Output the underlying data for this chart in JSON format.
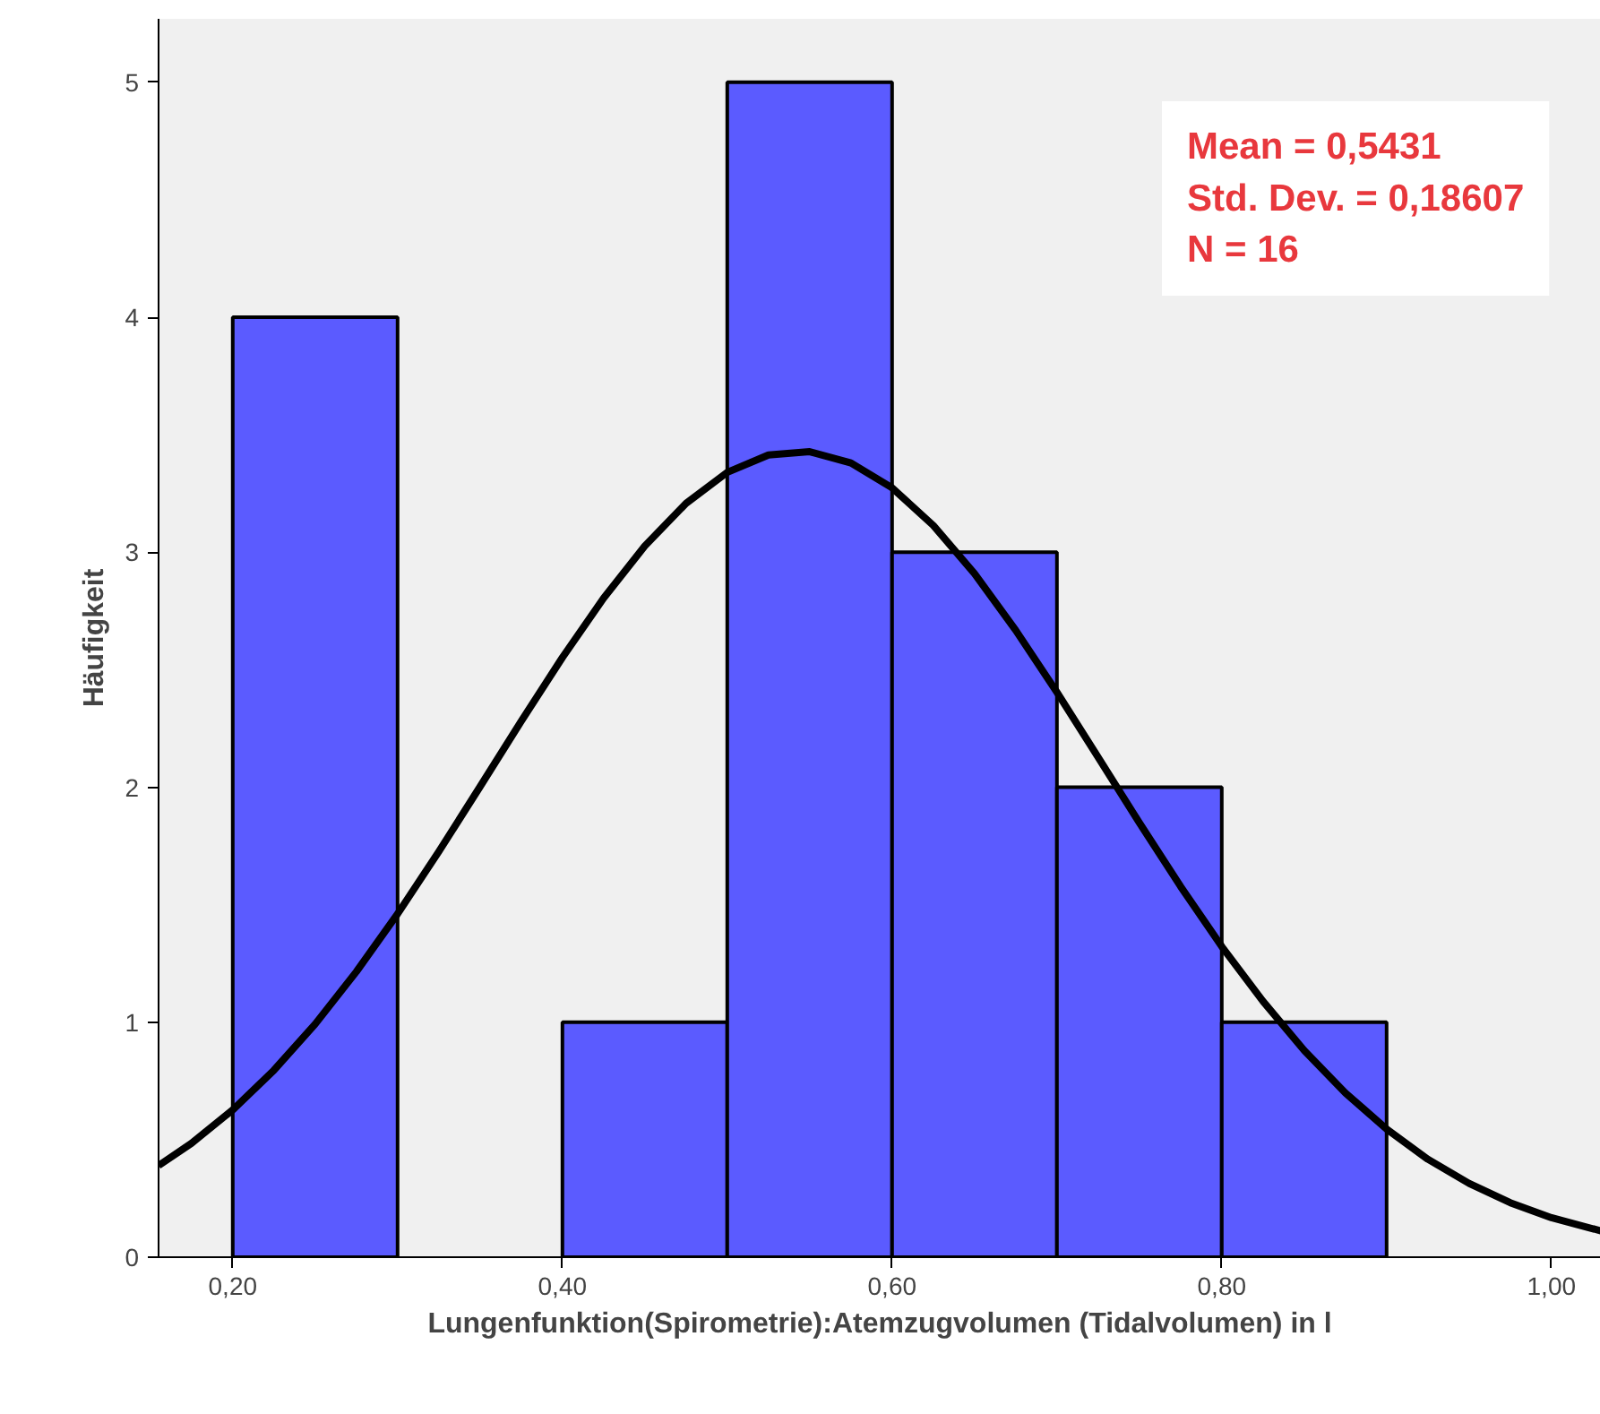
{
  "chart_data": {
    "type": "histogram",
    "xlabel": "Lungenfunktion(Spirometrie):Atemzugvolumen (Tidalvolumen) in l",
    "ylabel": "Häufigkeit",
    "bins": [
      0.2,
      0.3,
      0.4,
      0.5,
      0.6,
      0.7,
      0.8,
      0.9
    ],
    "values": [
      4,
      0,
      1,
      5,
      3,
      2,
      1
    ],
    "color": "#5b5bff",
    "series": [
      {
        "type": "line",
        "color": "#000000",
        "x": [
          0.155,
          0.175,
          0.2,
          0.225,
          0.25,
          0.275,
          0.3,
          0.325,
          0.35,
          0.375,
          0.4,
          0.425,
          0.45,
          0.475,
          0.5,
          0.525,
          0.55,
          0.575,
          0.6,
          0.625,
          0.65,
          0.675,
          0.7,
          0.725,
          0.75,
          0.775,
          0.8,
          0.825,
          0.85,
          0.875,
          0.9,
          0.925,
          0.95,
          0.975,
          1.0,
          1.03
        ],
        "values": [
          0.39,
          0.485,
          0.627,
          0.796,
          0.992,
          1.215,
          1.461,
          1.726,
          2.002,
          2.281,
          2.552,
          2.805,
          3.027,
          3.208,
          3.34,
          3.414,
          3.428,
          3.38,
          3.274,
          3.114,
          2.909,
          2.668,
          2.404,
          2.127,
          1.849,
          1.578,
          1.322,
          1.089,
          0.88,
          0.699,
          0.545,
          0.417,
          0.314,
          0.232,
          0.168,
          0.112
        ]
      }
    ],
    "annotations": [
      "Mean = 0,5431",
      "Std. Dev. = 0,18607",
      "N = 16"
    ],
    "xlim": [
      0.155,
      1.03
    ],
    "ylim": [
      0,
      5.27
    ],
    "xticks": [
      {
        "value": 0.2,
        "label": "0,20"
      },
      {
        "value": 0.4,
        "label": "0,40"
      },
      {
        "value": 0.6,
        "label": "0,60"
      },
      {
        "value": 0.8,
        "label": "0,80"
      },
      {
        "value": 1.0,
        "label": "1,00"
      }
    ],
    "yticks": [
      0,
      1,
      2,
      3,
      4,
      5
    ],
    "grid": false,
    "line_style": "solid",
    "marker": "none"
  }
}
